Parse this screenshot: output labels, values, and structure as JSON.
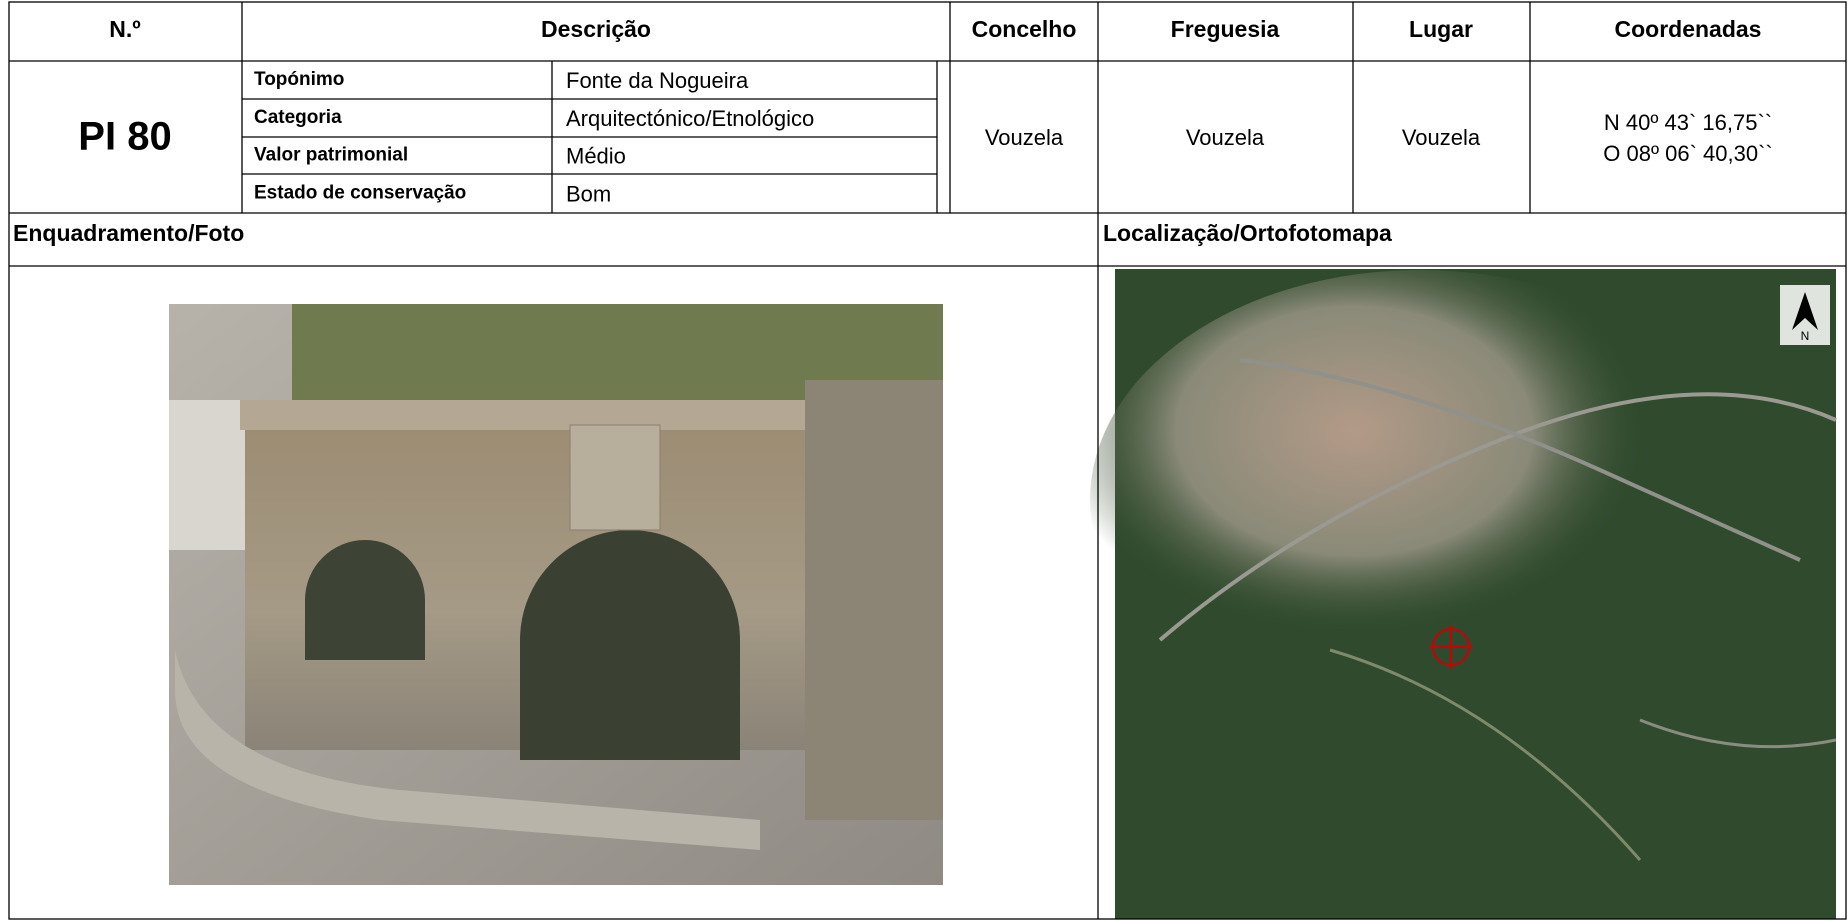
{
  "header": {
    "columns": [
      "N.º",
      "Descrição",
      "Concelho",
      "Freguesia",
      "Lugar",
      "Coordenadas"
    ]
  },
  "record": {
    "id": "PI 80",
    "description": [
      [
        "Topónimo",
        "Fonte da Nogueira"
      ],
      [
        "Categoria",
        "Arquitectónico/Etnológico"
      ],
      [
        "Valor patrimonial",
        "Médio"
      ],
      [
        "Estado de conservação",
        "Bom"
      ]
    ],
    "concelho": "Vouzela",
    "freguesia": "Vouzela",
    "lugar": "Vouzela",
    "coordinates": [
      "N 40º 43` 16,75``",
      "O 08º 06` 40,30``"
    ]
  },
  "sections": {
    "photo": "Enquadramento/Foto",
    "map": "Localização/Ortofotomapa"
  },
  "map_north": "N"
}
